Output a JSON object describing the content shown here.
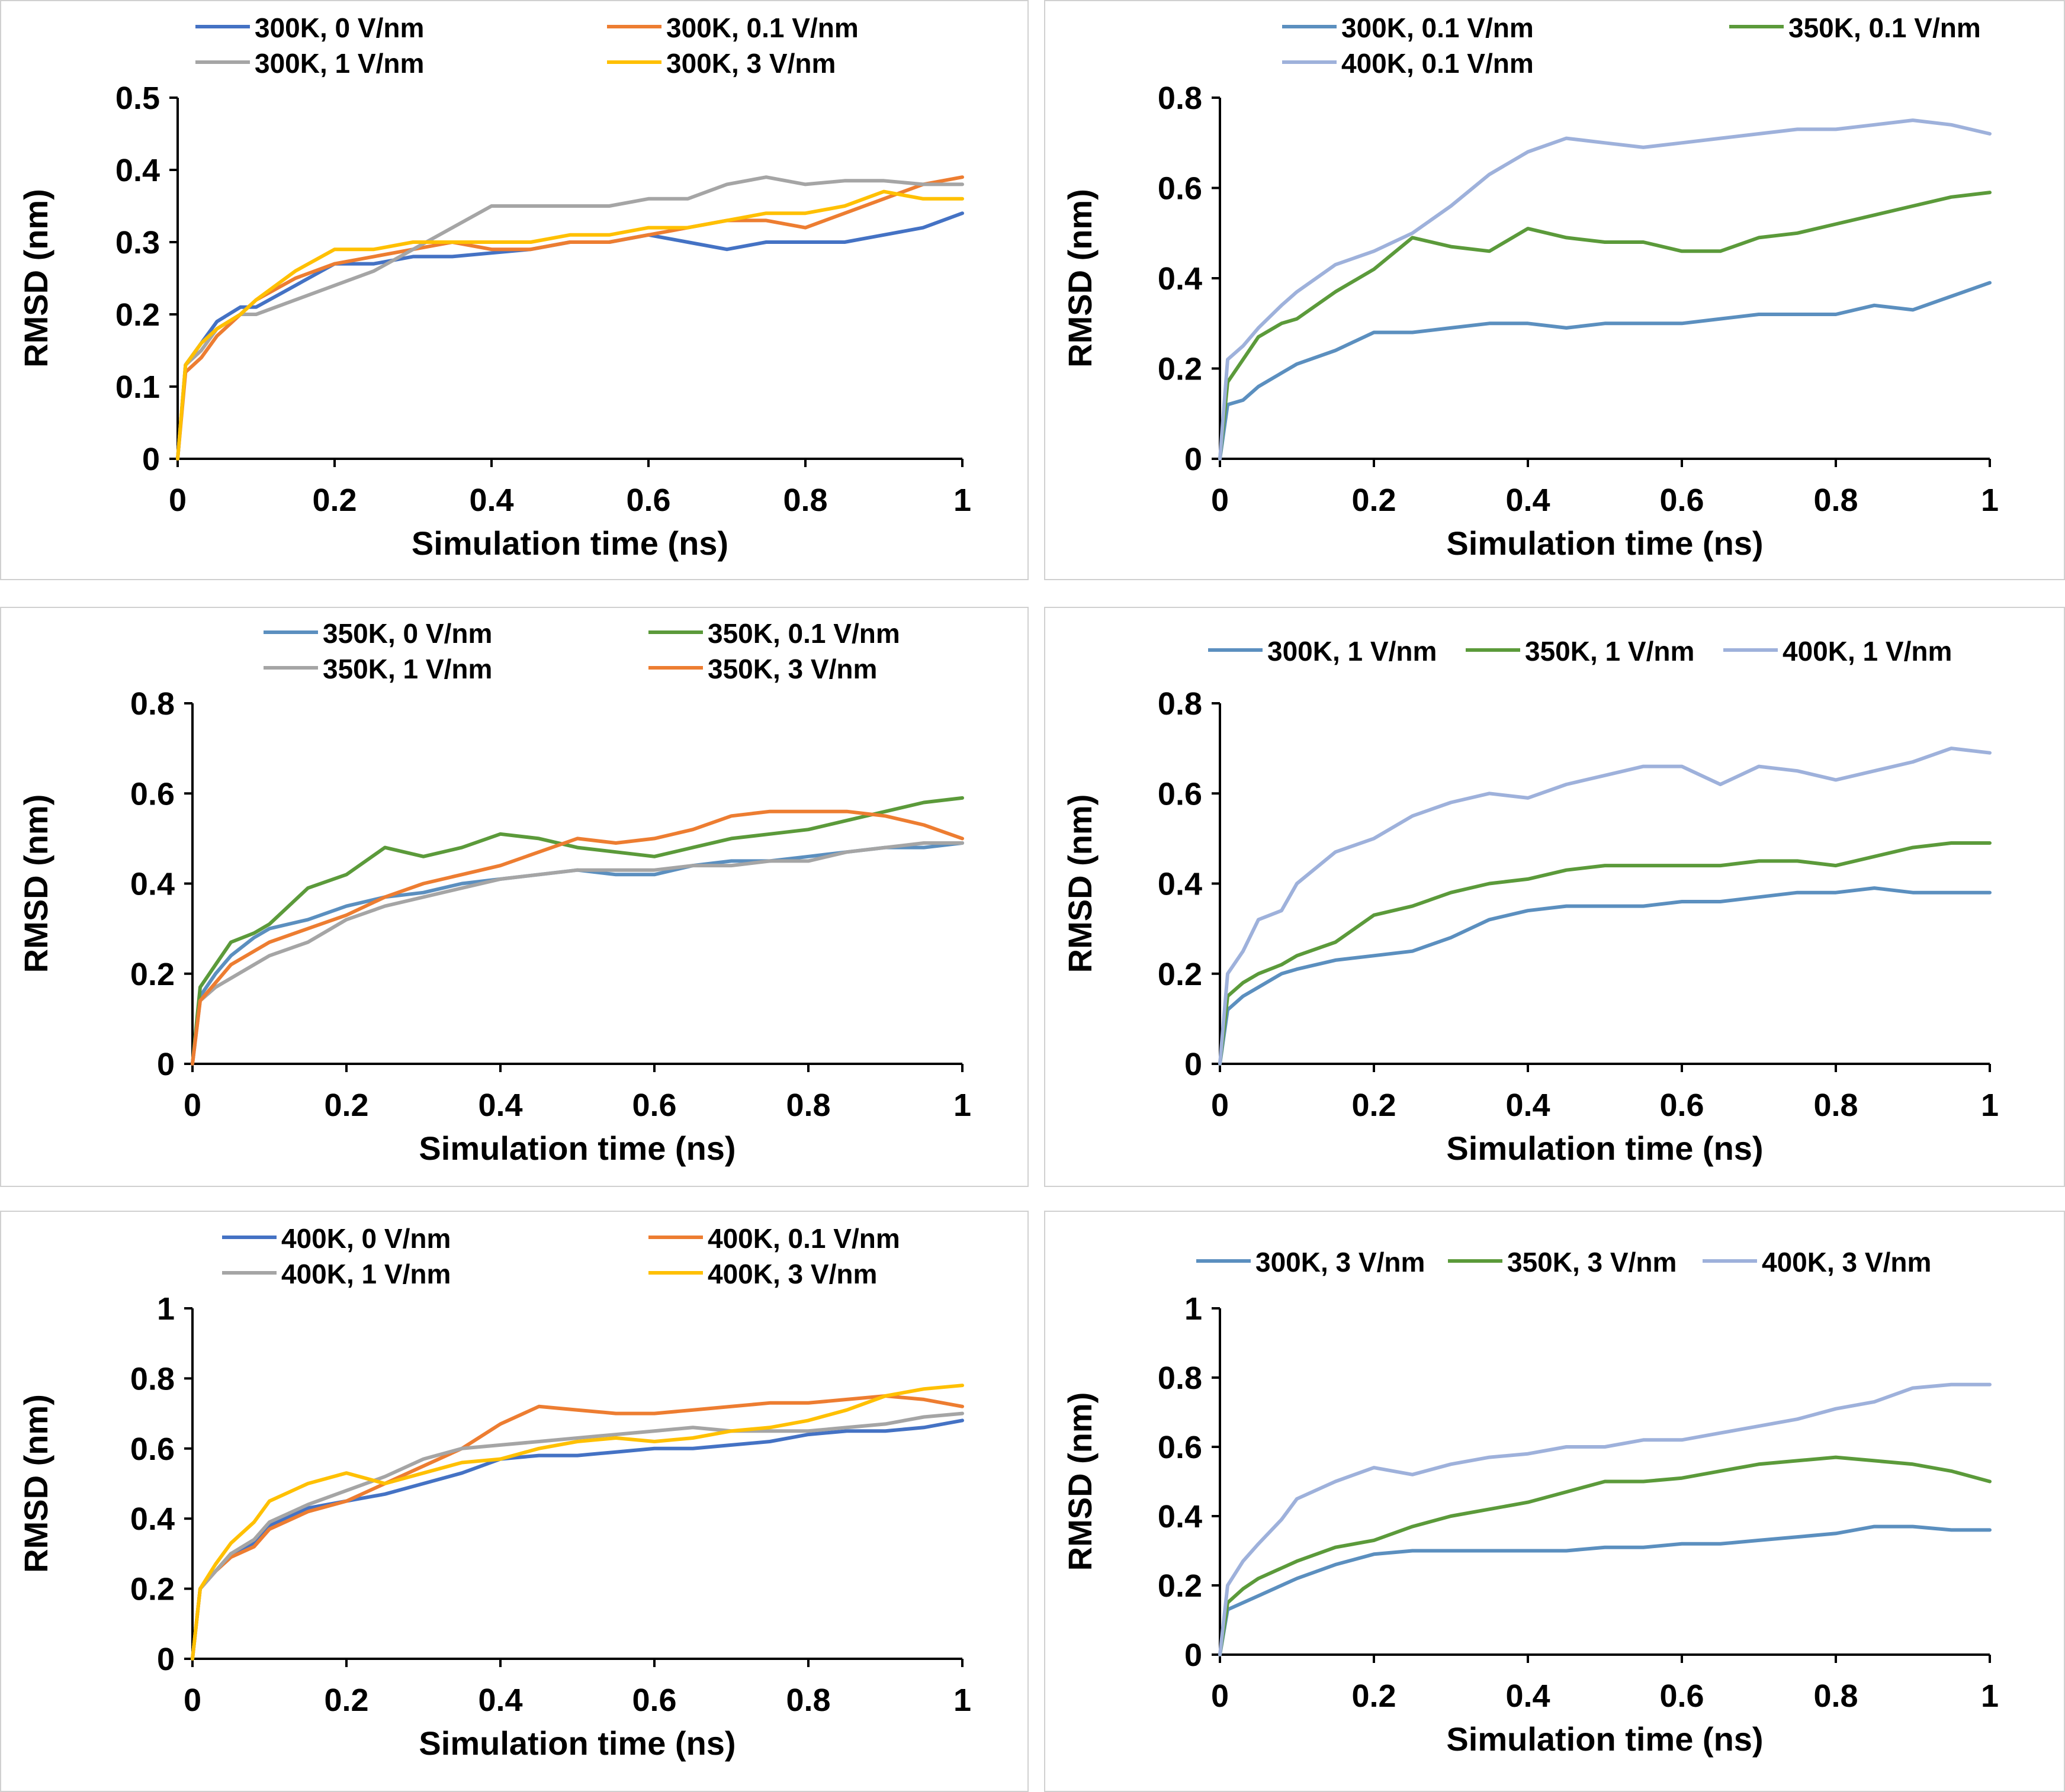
{
  "figure": {
    "xlabel": "Simulation time (ns)",
    "ylabel": "RMSD (nm)"
  },
  "colors": {
    "blue": "#4472C4",
    "orange": "#ED7D31",
    "gray": "#A5A5A5",
    "yellow": "#FFC000",
    "steel": "#5B8FBF",
    "green": "#5B9A3A",
    "lavender": "#9EB1DB"
  },
  "chart_data": [
    {
      "type": "line",
      "xlabel": "Simulation time (ns)",
      "ylabel": "RMSD (nm)",
      "xlim": [
        0,
        1
      ],
      "ylim": [
        0,
        0.5
      ],
      "xticks": [
        "0",
        "0.2",
        "0.4",
        "0.6",
        "0.8",
        "1"
      ],
      "yticks": [
        "0",
        "0.1",
        "0.2",
        "0.3",
        "0.4",
        "0.5"
      ],
      "grid": false,
      "legend_position": "top",
      "x": [
        0,
        0.01,
        0.03,
        0.05,
        0.08,
        0.1,
        0.15,
        0.2,
        0.25,
        0.3,
        0.35,
        0.4,
        0.45,
        0.5,
        0.55,
        0.6,
        0.65,
        0.7,
        0.75,
        0.8,
        0.85,
        0.9,
        0.95,
        1.0
      ],
      "series": [
        {
          "name": "300K, 0 V/nm",
          "color": "blue",
          "values": [
            0,
            0.13,
            0.16,
            0.19,
            0.21,
            0.21,
            0.24,
            0.27,
            0.27,
            0.28,
            0.28,
            0.285,
            0.29,
            0.3,
            0.3,
            0.31,
            0.3,
            0.29,
            0.3,
            0.3,
            0.3,
            0.31,
            0.32,
            0.34
          ]
        },
        {
          "name": "300K, 0.1 V/nm",
          "color": "orange",
          "values": [
            0,
            0.12,
            0.14,
            0.17,
            0.2,
            0.22,
            0.25,
            0.27,
            0.28,
            0.29,
            0.3,
            0.29,
            0.29,
            0.3,
            0.3,
            0.31,
            0.32,
            0.33,
            0.33,
            0.32,
            0.34,
            0.36,
            0.38,
            0.39
          ]
        },
        {
          "name": "300K, 1 V/nm",
          "color": "gray",
          "values": [
            0,
            0.13,
            0.15,
            0.18,
            0.2,
            0.2,
            0.22,
            0.24,
            0.26,
            0.29,
            0.32,
            0.35,
            0.35,
            0.35,
            0.35,
            0.36,
            0.36,
            0.38,
            0.39,
            0.38,
            0.385,
            0.385,
            0.38,
            0.38
          ]
        },
        {
          "name": "300K, 3 V/nm",
          "color": "yellow",
          "values": [
            0,
            0.13,
            0.16,
            0.18,
            0.2,
            0.22,
            0.26,
            0.29,
            0.29,
            0.3,
            0.3,
            0.3,
            0.3,
            0.31,
            0.31,
            0.32,
            0.32,
            0.33,
            0.34,
            0.34,
            0.35,
            0.37,
            0.36,
            0.36
          ]
        }
      ]
    },
    {
      "type": "line",
      "xlabel": "Simulation time (ns)",
      "ylabel": "RMSD (nm)",
      "xlim": [
        0,
        1
      ],
      "ylim": [
        0,
        0.8
      ],
      "xticks": [
        "0",
        "0.2",
        "0.4",
        "0.6",
        "0.8",
        "1"
      ],
      "yticks": [
        "0",
        "0.2",
        "0.4",
        "0.6",
        "0.8"
      ],
      "grid": false,
      "legend_position": "top",
      "x": [
        0,
        0.01,
        0.03,
        0.05,
        0.08,
        0.1,
        0.15,
        0.2,
        0.25,
        0.3,
        0.35,
        0.4,
        0.45,
        0.5,
        0.55,
        0.6,
        0.65,
        0.7,
        0.75,
        0.8,
        0.85,
        0.9,
        0.95,
        1.0
      ],
      "series": [
        {
          "name": "300K, 0.1 V/nm",
          "color": "steel",
          "values": [
            0,
            0.12,
            0.13,
            0.16,
            0.19,
            0.21,
            0.24,
            0.28,
            0.28,
            0.29,
            0.3,
            0.3,
            0.29,
            0.3,
            0.3,
            0.3,
            0.31,
            0.32,
            0.32,
            0.32,
            0.34,
            0.33,
            0.36,
            0.39
          ]
        },
        {
          "name": "350K, 0.1 V/nm",
          "color": "green",
          "values": [
            0,
            0.17,
            0.22,
            0.27,
            0.3,
            0.31,
            0.37,
            0.42,
            0.49,
            0.47,
            0.46,
            0.51,
            0.49,
            0.48,
            0.48,
            0.46,
            0.46,
            0.49,
            0.5,
            0.52,
            0.54,
            0.56,
            0.58,
            0.59
          ]
        },
        {
          "name": "400K, 0.1 V/nm",
          "color": "lavender",
          "values": [
            0,
            0.22,
            0.25,
            0.29,
            0.34,
            0.37,
            0.43,
            0.46,
            0.5,
            0.56,
            0.63,
            0.68,
            0.71,
            0.7,
            0.69,
            0.7,
            0.71,
            0.72,
            0.73,
            0.73,
            0.74,
            0.75,
            0.74,
            0.72
          ]
        }
      ]
    },
    {
      "type": "line",
      "xlabel": "Simulation time (ns)",
      "ylabel": "RMSD (nm)",
      "xlim": [
        0,
        1
      ],
      "ylim": [
        0,
        0.8
      ],
      "xticks": [
        "0",
        "0.2",
        "0.4",
        "0.6",
        "0.8",
        "1"
      ],
      "yticks": [
        "0",
        "0.2",
        "0.4",
        "0.6",
        "0.8"
      ],
      "grid": false,
      "legend_position": "top",
      "x": [
        0,
        0.01,
        0.03,
        0.05,
        0.08,
        0.1,
        0.15,
        0.2,
        0.25,
        0.3,
        0.35,
        0.4,
        0.45,
        0.5,
        0.55,
        0.6,
        0.65,
        0.7,
        0.75,
        0.8,
        0.85,
        0.9,
        0.95,
        1.0
      ],
      "series": [
        {
          "name": "350K, 0 V/nm",
          "color": "steel",
          "values": [
            0,
            0.15,
            0.2,
            0.24,
            0.28,
            0.3,
            0.32,
            0.35,
            0.37,
            0.38,
            0.4,
            0.41,
            0.42,
            0.43,
            0.42,
            0.42,
            0.44,
            0.45,
            0.45,
            0.46,
            0.47,
            0.48,
            0.48,
            0.49
          ]
        },
        {
          "name": "350K, 0.1 V/nm",
          "color": "green",
          "values": [
            0,
            0.17,
            0.22,
            0.27,
            0.29,
            0.31,
            0.39,
            0.42,
            0.48,
            0.46,
            0.48,
            0.51,
            0.5,
            0.48,
            0.47,
            0.46,
            0.48,
            0.5,
            0.51,
            0.52,
            0.54,
            0.56,
            0.58,
            0.59
          ]
        },
        {
          "name": "350K, 1 V/nm",
          "color": "gray",
          "values": [
            0,
            0.14,
            0.17,
            0.19,
            0.22,
            0.24,
            0.27,
            0.32,
            0.35,
            0.37,
            0.39,
            0.41,
            0.42,
            0.43,
            0.43,
            0.43,
            0.44,
            0.44,
            0.45,
            0.45,
            0.47,
            0.48,
            0.49,
            0.49
          ]
        },
        {
          "name": "350K, 3 V/nm",
          "color": "orange",
          "values": [
            0,
            0.14,
            0.18,
            0.22,
            0.25,
            0.27,
            0.3,
            0.33,
            0.37,
            0.4,
            0.42,
            0.44,
            0.47,
            0.5,
            0.49,
            0.5,
            0.52,
            0.55,
            0.56,
            0.56,
            0.56,
            0.55,
            0.53,
            0.5
          ]
        }
      ]
    },
    {
      "type": "line",
      "xlabel": "Simulation time (ns)",
      "ylabel": "RMSD (nm)",
      "xlim": [
        0,
        1
      ],
      "ylim": [
        0,
        0.8
      ],
      "xticks": [
        "0",
        "0.2",
        "0.4",
        "0.6",
        "0.8",
        "1"
      ],
      "yticks": [
        "0",
        "0.2",
        "0.4",
        "0.6",
        "0.8"
      ],
      "grid": false,
      "legend_position": "top",
      "x": [
        0,
        0.01,
        0.03,
        0.05,
        0.08,
        0.1,
        0.15,
        0.2,
        0.25,
        0.3,
        0.35,
        0.4,
        0.45,
        0.5,
        0.55,
        0.6,
        0.65,
        0.7,
        0.75,
        0.8,
        0.85,
        0.9,
        0.95,
        1.0
      ],
      "series": [
        {
          "name": "300K, 1 V/nm",
          "color": "steel",
          "values": [
            0,
            0.12,
            0.15,
            0.17,
            0.2,
            0.21,
            0.23,
            0.24,
            0.25,
            0.28,
            0.32,
            0.34,
            0.35,
            0.35,
            0.35,
            0.36,
            0.36,
            0.37,
            0.38,
            0.38,
            0.39,
            0.38,
            0.38,
            0.38
          ]
        },
        {
          "name": "350K, 1 V/nm",
          "color": "green",
          "values": [
            0,
            0.15,
            0.18,
            0.2,
            0.22,
            0.24,
            0.27,
            0.33,
            0.35,
            0.38,
            0.4,
            0.41,
            0.43,
            0.44,
            0.44,
            0.44,
            0.44,
            0.45,
            0.45,
            0.44,
            0.46,
            0.48,
            0.49,
            0.49
          ]
        },
        {
          "name": "400K, 1 V/nm",
          "color": "lavender",
          "values": [
            0,
            0.2,
            0.25,
            0.32,
            0.34,
            0.4,
            0.47,
            0.5,
            0.55,
            0.58,
            0.6,
            0.59,
            0.62,
            0.64,
            0.66,
            0.66,
            0.62,
            0.66,
            0.65,
            0.63,
            0.65,
            0.67,
            0.7,
            0.69
          ]
        }
      ]
    },
    {
      "type": "line",
      "xlabel": "Simulation time (ns)",
      "ylabel": "RMSD (nm)",
      "xlim": [
        0,
        1
      ],
      "ylim": [
        0,
        1
      ],
      "xticks": [
        "0",
        "0.2",
        "0.4",
        "0.6",
        "0.8",
        "1"
      ],
      "yticks": [
        "0",
        "0.2",
        "0.4",
        "0.6",
        "0.8",
        "1"
      ],
      "grid": false,
      "legend_position": "top",
      "x": [
        0,
        0.01,
        0.03,
        0.05,
        0.08,
        0.1,
        0.15,
        0.2,
        0.25,
        0.3,
        0.35,
        0.4,
        0.45,
        0.5,
        0.55,
        0.6,
        0.65,
        0.7,
        0.75,
        0.8,
        0.85,
        0.9,
        0.95,
        1.0
      ],
      "series": [
        {
          "name": "400K, 0 V/nm",
          "color": "blue",
          "values": [
            0,
            0.2,
            0.25,
            0.3,
            0.33,
            0.38,
            0.43,
            0.45,
            0.47,
            0.5,
            0.53,
            0.57,
            0.58,
            0.58,
            0.59,
            0.6,
            0.6,
            0.61,
            0.62,
            0.64,
            0.65,
            0.65,
            0.66,
            0.68
          ]
        },
        {
          "name": "400K, 0.1 V/nm",
          "color": "orange",
          "values": [
            0,
            0.2,
            0.25,
            0.29,
            0.32,
            0.37,
            0.42,
            0.45,
            0.5,
            0.55,
            0.6,
            0.67,
            0.72,
            0.71,
            0.7,
            0.7,
            0.71,
            0.72,
            0.73,
            0.73,
            0.74,
            0.75,
            0.74,
            0.72
          ]
        },
        {
          "name": "400K, 1 V/nm",
          "color": "gray",
          "values": [
            0,
            0.2,
            0.25,
            0.3,
            0.34,
            0.39,
            0.44,
            0.48,
            0.52,
            0.57,
            0.6,
            0.61,
            0.62,
            0.63,
            0.64,
            0.65,
            0.66,
            0.65,
            0.65,
            0.65,
            0.66,
            0.67,
            0.69,
            0.7
          ]
        },
        {
          "name": "400K, 3 V/nm",
          "color": "yellow",
          "values": [
            0,
            0.2,
            0.27,
            0.33,
            0.39,
            0.45,
            0.5,
            0.53,
            0.5,
            0.53,
            0.56,
            0.57,
            0.6,
            0.62,
            0.63,
            0.62,
            0.63,
            0.65,
            0.66,
            0.68,
            0.71,
            0.75,
            0.77,
            0.78
          ]
        }
      ]
    },
    {
      "type": "line",
      "xlabel": "Simulation time (ns)",
      "ylabel": "RMSD (nm)",
      "xlim": [
        0,
        1
      ],
      "ylim": [
        0,
        1
      ],
      "xticks": [
        "0",
        "0.2",
        "0.4",
        "0.6",
        "0.8",
        "1"
      ],
      "yticks": [
        "0",
        "0.2",
        "0.4",
        "0.6",
        "0.8",
        "1"
      ],
      "grid": false,
      "legend_position": "top",
      "x": [
        0,
        0.01,
        0.03,
        0.05,
        0.08,
        0.1,
        0.15,
        0.2,
        0.25,
        0.3,
        0.35,
        0.4,
        0.45,
        0.5,
        0.55,
        0.6,
        0.65,
        0.7,
        0.75,
        0.8,
        0.85,
        0.9,
        0.95,
        1.0
      ],
      "series": [
        {
          "name": "300K, 3 V/nm",
          "color": "steel",
          "values": [
            0,
            0.13,
            0.15,
            0.17,
            0.2,
            0.22,
            0.26,
            0.29,
            0.3,
            0.3,
            0.3,
            0.3,
            0.3,
            0.31,
            0.31,
            0.32,
            0.32,
            0.33,
            0.34,
            0.35,
            0.37,
            0.37,
            0.36,
            0.36
          ]
        },
        {
          "name": "350K, 3 V/nm",
          "color": "green",
          "values": [
            0,
            0.15,
            0.19,
            0.22,
            0.25,
            0.27,
            0.31,
            0.33,
            0.37,
            0.4,
            0.42,
            0.44,
            0.47,
            0.5,
            0.5,
            0.51,
            0.53,
            0.55,
            0.56,
            0.57,
            0.56,
            0.55,
            0.53,
            0.5
          ]
        },
        {
          "name": "400K, 3 V/nm",
          "color": "lavender",
          "values": [
            0,
            0.2,
            0.27,
            0.32,
            0.39,
            0.45,
            0.5,
            0.54,
            0.52,
            0.55,
            0.57,
            0.58,
            0.6,
            0.6,
            0.62,
            0.62,
            0.64,
            0.66,
            0.68,
            0.71,
            0.73,
            0.77,
            0.78,
            0.78
          ]
        }
      ]
    }
  ]
}
